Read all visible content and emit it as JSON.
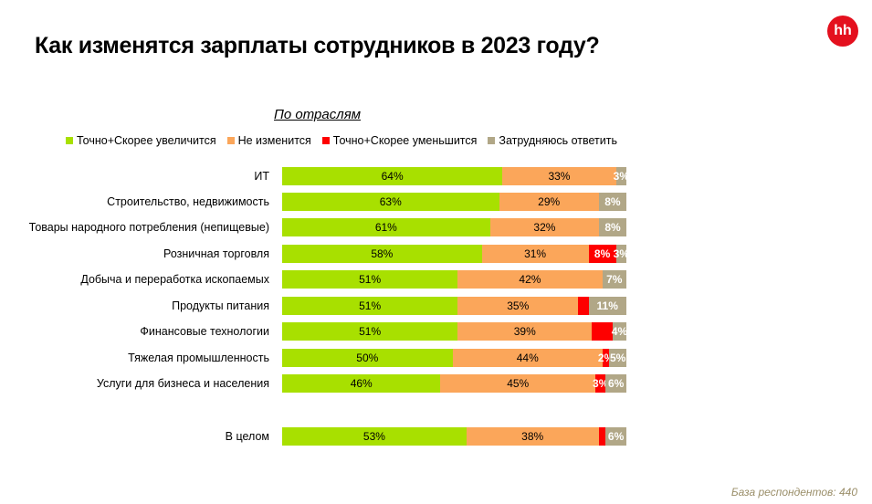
{
  "title": "Как изменятся зарплаты сотрудников в 2023 году?",
  "logo": "hh",
  "footer": "База респондентов: 440",
  "chart_data": {
    "type": "bar",
    "orientation": "horizontal-stacked-100",
    "title": "По отраслям",
    "legend": [
      {
        "name": "Точно+Скорее увеличится",
        "color": "#a8e000"
      },
      {
        "name": "Не изменится",
        "color": "#fba65a"
      },
      {
        "name": "Точно+Скорее уменьшится",
        "color": "#fe0000"
      },
      {
        "name": "Затрудняюсь ответить",
        "color": "#b1a787"
      }
    ],
    "categories": [
      "ИТ",
      "Строительство, недвижимость",
      "Товары народного потребления (непищевые)",
      "Розничная торговля",
      "Добыча и переработка ископаемых",
      "Продукты питания",
      "Финансовые технологии",
      "Тяжелая промышленность",
      "Услуги для бизнеса и населения",
      "В целом"
    ],
    "series": [
      {
        "name": "Точно+Скорее увеличится",
        "values": [
          64,
          63,
          61,
          58,
          51,
          51,
          51,
          50,
          46,
          53
        ],
        "labels": [
          "64%",
          "63%",
          "61%",
          "58%",
          "51%",
          "51%",
          "51%",
          "50%",
          "46%",
          "53%"
        ]
      },
      {
        "name": "Не изменится",
        "values": [
          33,
          29,
          32,
          31,
          42,
          35,
          39,
          44,
          45,
          38
        ],
        "labels": [
          "33%",
          "29%",
          "32%",
          "31%",
          "42%",
          "35%",
          "39%",
          "44%",
          "45%",
          "38%"
        ]
      },
      {
        "name": "Точно+Скорее уменьшится",
        "values": [
          0,
          0,
          0,
          8,
          0,
          3,
          6,
          2,
          3,
          2
        ],
        "labels": [
          "",
          "",
          "",
          "8%",
          "",
          "",
          "",
          "2%",
          "3%",
          ""
        ]
      },
      {
        "name": "Затрудняюсь ответить",
        "values": [
          3,
          8,
          8,
          3,
          7,
          11,
          4,
          5,
          6,
          6
        ],
        "labels": [
          "3%",
          "8%",
          "8%",
          "3%",
          "7%",
          "11%",
          "4%",
          "5%",
          "6%",
          "6%"
        ]
      }
    ],
    "xlim": [
      0,
      100
    ]
  }
}
